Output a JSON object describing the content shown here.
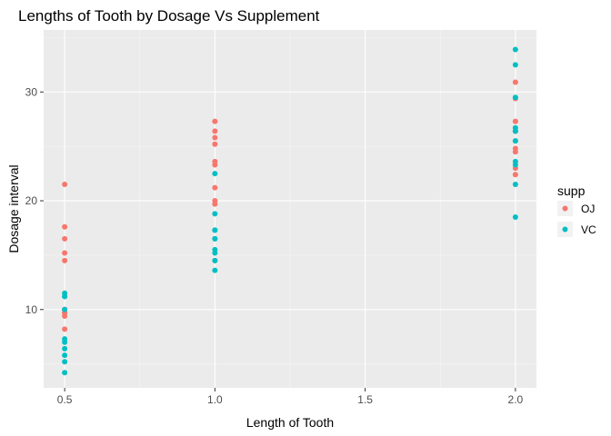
{
  "chart_data": {
    "type": "scatter",
    "title": "Lengths of Tooth by Dosage Vs Supplement",
    "xlabel": "Length of Tooth",
    "ylabel": "Dosage interval",
    "xlim": [
      0.43,
      2.07
    ],
    "ylim": [
      2.8,
      35.7
    ],
    "x_ticks": [
      0.5,
      1.0,
      1.5,
      2.0
    ],
    "x_tick_labels": [
      "0.5",
      "1.0",
      "1.5",
      "2.0"
    ],
    "y_ticks": [
      10,
      20,
      30
    ],
    "y_tick_labels": [
      "10",
      "20",
      "30"
    ],
    "grid": true,
    "legend": {
      "title": "supp",
      "position": "right"
    },
    "series": [
      {
        "name": "OJ",
        "color": "#F8766D",
        "points": [
          [
            0.5,
            15.2
          ],
          [
            0.5,
            21.5
          ],
          [
            0.5,
            17.6
          ],
          [
            0.5,
            9.7
          ],
          [
            0.5,
            14.5
          ],
          [
            0.5,
            10.0
          ],
          [
            0.5,
            8.2
          ],
          [
            0.5,
            9.4
          ],
          [
            0.5,
            16.5
          ],
          [
            0.5,
            9.7
          ],
          [
            1.0,
            19.7
          ],
          [
            1.0,
            23.3
          ],
          [
            1.0,
            23.6
          ],
          [
            1.0,
            26.4
          ],
          [
            1.0,
            20.0
          ],
          [
            1.0,
            25.2
          ],
          [
            1.0,
            25.8
          ],
          [
            1.0,
            21.2
          ],
          [
            1.0,
            14.5
          ],
          [
            1.0,
            27.3
          ],
          [
            2.0,
            25.5
          ],
          [
            2.0,
            26.4
          ],
          [
            2.0,
            22.4
          ],
          [
            2.0,
            24.5
          ],
          [
            2.0,
            24.8
          ],
          [
            2.0,
            30.9
          ],
          [
            2.0,
            26.4
          ],
          [
            2.0,
            27.3
          ],
          [
            2.0,
            29.4
          ],
          [
            2.0,
            23.0
          ]
        ]
      },
      {
        "name": "VC",
        "color": "#00BFC4",
        "points": [
          [
            0.5,
            4.2
          ],
          [
            0.5,
            11.5
          ],
          [
            0.5,
            7.3
          ],
          [
            0.5,
            5.8
          ],
          [
            0.5,
            6.4
          ],
          [
            0.5,
            10.0
          ],
          [
            0.5,
            11.2
          ],
          [
            0.5,
            11.2
          ],
          [
            0.5,
            5.2
          ],
          [
            0.5,
            7.0
          ],
          [
            1.0,
            16.5
          ],
          [
            1.0,
            16.5
          ],
          [
            1.0,
            15.2
          ],
          [
            1.0,
            17.3
          ],
          [
            1.0,
            22.5
          ],
          [
            1.0,
            17.3
          ],
          [
            1.0,
            13.6
          ],
          [
            1.0,
            14.5
          ],
          [
            1.0,
            18.8
          ],
          [
            1.0,
            15.5
          ],
          [
            2.0,
            23.6
          ],
          [
            2.0,
            18.5
          ],
          [
            2.0,
            33.9
          ],
          [
            2.0,
            25.5
          ],
          [
            2.0,
            26.4
          ],
          [
            2.0,
            32.5
          ],
          [
            2.0,
            26.7
          ],
          [
            2.0,
            21.5
          ],
          [
            2.0,
            23.3
          ],
          [
            2.0,
            29.5
          ]
        ]
      }
    ]
  }
}
